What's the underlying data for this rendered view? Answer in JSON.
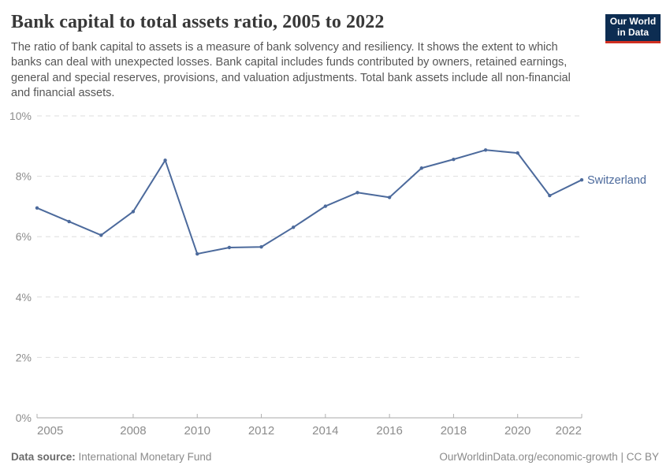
{
  "header": {
    "title": "Bank capital to total assets ratio, 2005 to 2022",
    "subtitle": "The ratio of bank capital to assets is a measure of bank solvency and resiliency. It shows the extent to which banks can deal with unexpected losses. Bank capital includes funds contributed by owners, retained earnings, general and special reserves, provisions, and valuation adjustments. Total bank assets include all non-financial and financial assets.",
    "logo": {
      "line1": "Our World",
      "line2": "in Data",
      "bg_color": "#0d2d52",
      "accent_color": "#d02f21",
      "text_color": "#ffffff"
    }
  },
  "chart_data": {
    "type": "line",
    "title": "Bank capital to total assets ratio, 2005 to 2022",
    "xlabel": "",
    "ylabel": "",
    "xlim": [
      2005,
      2022
    ],
    "ylim": [
      0,
      10
    ],
    "grid": "horizontal-dashed",
    "legend_position": "end-of-line-label",
    "x": [
      2005,
      2006,
      2007,
      2008,
      2009,
      2010,
      2011,
      2012,
      2013,
      2014,
      2015,
      2016,
      2017,
      2018,
      2019,
      2020,
      2021,
      2022
    ],
    "series": [
      {
        "name": "Switzerland",
        "color": "#4c6a9c",
        "values": [
          6.95,
          6.5,
          6.05,
          6.83,
          8.53,
          5.43,
          5.64,
          5.66,
          6.31,
          7.01,
          7.46,
          7.3,
          8.27,
          8.56,
          8.87,
          8.77,
          7.36,
          7.88
        ]
      }
    ],
    "x_ticks": [
      {
        "v": 2005,
        "label": "2005"
      },
      {
        "v": 2008,
        "label": "2008"
      },
      {
        "v": 2010,
        "label": "2010"
      },
      {
        "v": 2012,
        "label": "2012"
      },
      {
        "v": 2014,
        "label": "2014"
      },
      {
        "v": 2016,
        "label": "2016"
      },
      {
        "v": 2018,
        "label": "2018"
      },
      {
        "v": 2020,
        "label": "2020"
      },
      {
        "v": 2022,
        "label": "2022"
      }
    ],
    "y_ticks": [
      {
        "v": 0,
        "label": "0%"
      },
      {
        "v": 2,
        "label": "2%"
      },
      {
        "v": 4,
        "label": "4%"
      },
      {
        "v": 6,
        "label": "6%"
      },
      {
        "v": 8,
        "label": "8%"
      },
      {
        "v": 10,
        "label": "10%"
      }
    ],
    "colors": {
      "line": "#4c6a9c",
      "gridline": "#dedede",
      "axis_line": "#a8a8a8",
      "tick": "#b0b0b0",
      "tick_label": "#8c8c8c",
      "series_label": "#4c6a9c"
    }
  },
  "footer": {
    "source_label": "Data source:",
    "source_value": "International Monetary Fund",
    "credit": "OurWorldinData.org/economic-growth | CC BY"
  }
}
